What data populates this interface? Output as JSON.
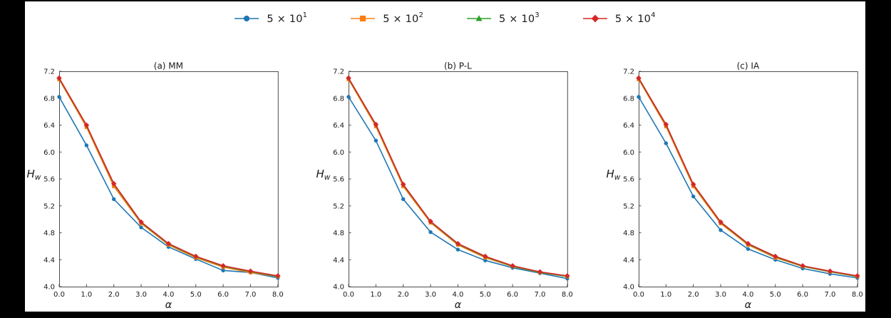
{
  "figure": {
    "background": "#000000",
    "page_background": "#ffffff",
    "text_color": "#1a1a1a",
    "spine_color": "#4d4d4d"
  },
  "legend": {
    "items": [
      {
        "label": "5 × 10^1",
        "marker": "circle",
        "color": "#1f77b4"
      },
      {
        "label": "5 × 10^2",
        "marker": "square",
        "color": "#ff7f0e"
      },
      {
        "label": "5 × 10^3",
        "marker": "triangle-up",
        "color": "#2ca02c"
      },
      {
        "label": "5 × 10^4",
        "marker": "diamond",
        "color": "#d62728"
      }
    ]
  },
  "chart_data": [
    {
      "type": "line",
      "title": "(a) MM",
      "xlabel": "α",
      "ylabel": "H_w",
      "xlim": [
        0,
        8
      ],
      "ylim": [
        4.0,
        7.2
      ],
      "grid": false,
      "legend_position": "top-center-shared",
      "xticks": [
        "0.0",
        "1.0",
        "2.0",
        "3.0",
        "4.0",
        "5.0",
        "6.0",
        "7.0",
        "8.0"
      ],
      "yticks": [
        "4.0",
        "4.4",
        "4.8",
        "5.2",
        "5.6",
        "6.0",
        "6.4",
        "6.8",
        "7.2"
      ],
      "x": [
        0,
        1,
        2,
        3,
        4,
        5,
        6,
        7,
        8
      ],
      "series": [
        {
          "name": "5 × 10^1",
          "color": "#1f77b4",
          "marker": "circle",
          "values": [
            6.82,
            6.1,
            5.3,
            4.88,
            4.59,
            4.41,
            4.24,
            4.21,
            4.13
          ]
        },
        {
          "name": "5 × 10^2",
          "color": "#ff7f0e",
          "marker": "square",
          "values": [
            7.08,
            6.37,
            5.49,
            4.94,
            4.62,
            4.43,
            4.29,
            4.21,
            4.15
          ]
        },
        {
          "name": "5 × 10^3",
          "color": "#2ca02c",
          "marker": "triangle-up",
          "values": [
            7.093,
            6.393,
            5.522,
            4.953,
            4.633,
            4.443,
            4.303,
            4.223,
            4.153
          ]
        },
        {
          "name": "5 × 10^4",
          "color": "#d62728",
          "marker": "diamond",
          "values": [
            7.1,
            6.4,
            5.53,
            4.96,
            4.64,
            4.45,
            4.31,
            4.23,
            4.16
          ]
        }
      ]
    },
    {
      "type": "line",
      "title": "(b) P-L",
      "xlabel": "α",
      "ylabel": "H_w",
      "xlim": [
        0,
        8
      ],
      "ylim": [
        4.0,
        7.2
      ],
      "grid": false,
      "legend_position": "top-center-shared",
      "xticks": [
        "0.0",
        "1.0",
        "2.0",
        "3.0",
        "4.0",
        "5.0",
        "6.0",
        "7.0",
        "8.0"
      ],
      "yticks": [
        "4.0",
        "4.4",
        "4.8",
        "5.2",
        "5.6",
        "6.0",
        "6.4",
        "6.8",
        "7.2"
      ],
      "x": [
        0,
        1,
        2,
        3,
        4,
        5,
        6,
        7,
        8
      ],
      "series": [
        {
          "name": "5 × 10^1",
          "color": "#1f77b4",
          "marker": "circle",
          "values": [
            6.82,
            6.17,
            5.3,
            4.81,
            4.55,
            4.39,
            4.28,
            4.2,
            4.12
          ]
        },
        {
          "name": "5 × 10^2",
          "color": "#ff7f0e",
          "marker": "square",
          "values": [
            7.08,
            6.38,
            5.49,
            4.95,
            4.62,
            4.43,
            4.3,
            4.21,
            4.15
          ]
        },
        {
          "name": "5 × 10^3",
          "color": "#2ca02c",
          "marker": "triangle-up",
          "values": [
            7.093,
            6.403,
            5.513,
            4.963,
            4.633,
            4.443,
            4.303,
            4.213,
            4.153
          ]
        },
        {
          "name": "5 × 10^4",
          "color": "#d62728",
          "marker": "diamond",
          "values": [
            7.1,
            6.41,
            5.52,
            4.97,
            4.64,
            4.45,
            4.31,
            4.22,
            4.16
          ]
        }
      ]
    },
    {
      "type": "line",
      "title": "(c) IA",
      "xlabel": "α",
      "ylabel": "H_w",
      "xlim": [
        0,
        8
      ],
      "ylim": [
        4.0,
        7.2
      ],
      "grid": false,
      "legend_position": "top-center-shared",
      "xticks": [
        "0.0",
        "1.0",
        "2.0",
        "3.0",
        "4.0",
        "5.0",
        "6.0",
        "7.0",
        "8.0"
      ],
      "yticks": [
        "4.0",
        "4.4",
        "4.8",
        "5.2",
        "5.6",
        "6.0",
        "6.4",
        "6.8",
        "7.2"
      ],
      "x": [
        0,
        1,
        2,
        3,
        4,
        5,
        6,
        7,
        8
      ],
      "series": [
        {
          "name": "5 × 10^1",
          "color": "#1f77b4",
          "marker": "circle",
          "values": [
            6.82,
            6.13,
            5.34,
            4.84,
            4.56,
            4.4,
            4.27,
            4.19,
            4.13
          ]
        },
        {
          "name": "5 × 10^2",
          "color": "#ff7f0e",
          "marker": "square",
          "values": [
            7.08,
            6.38,
            5.49,
            4.94,
            4.62,
            4.43,
            4.3,
            4.22,
            4.15
          ]
        },
        {
          "name": "5 × 10^3",
          "color": "#2ca02c",
          "marker": "triangle-up",
          "values": [
            7.093,
            6.403,
            5.513,
            4.953,
            4.633,
            4.443,
            4.303,
            4.223,
            4.153
          ]
        },
        {
          "name": "5 × 10^4",
          "color": "#d62728",
          "marker": "diamond",
          "values": [
            7.1,
            6.41,
            5.52,
            4.96,
            4.64,
            4.45,
            4.31,
            4.23,
            4.16
          ]
        }
      ]
    }
  ]
}
